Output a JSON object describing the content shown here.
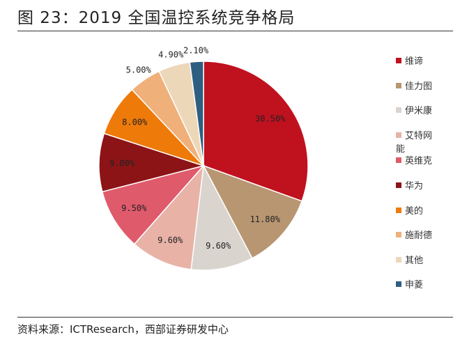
{
  "title": "图 23：2019 全国温控系统竞争格局",
  "source": "资料来源：ICTResearch，西部证券研发中心",
  "chart_data": {
    "type": "pie",
    "title": "图 23：2019 全国温控系统竞争格局",
    "start": "12 o'clock, clockwise",
    "legend_position": "right",
    "categories": [
      "维谛",
      "佳力图",
      "伊米康",
      "艾特网能",
      "英维克",
      "华为",
      "美的",
      "施耐德",
      "其他",
      "申菱"
    ],
    "values": [
      30.5,
      11.8,
      9.6,
      9.6,
      9.5,
      9.0,
      8.0,
      5.0,
      4.9,
      2.1
    ],
    "labels": [
      "30.50%",
      "11.80%",
      "9.60%",
      "9.60%",
      "9.50%",
      "9.00%",
      "8.00%",
      "5.00%",
      "4.90%",
      "2.10%"
    ],
    "colors": [
      "#C0111F",
      "#B89672",
      "#DAD4CF",
      "#E8B2A7",
      "#DF5A6B",
      "#8C1416",
      "#EE7A0A",
      "#F0B07A",
      "#EDD7B9",
      "#2F5F80"
    ]
  }
}
